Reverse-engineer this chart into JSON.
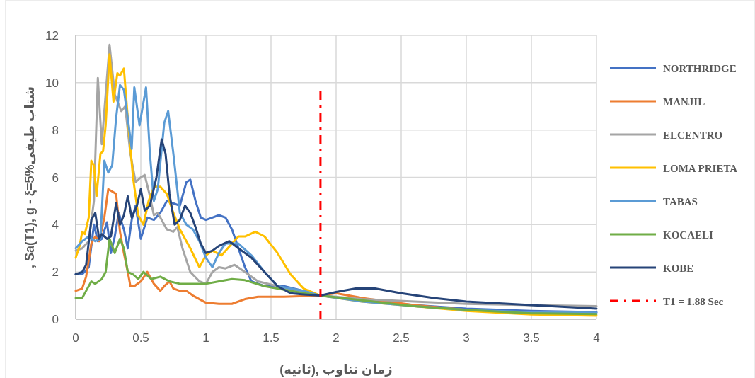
{
  "chart_data": {
    "type": "line",
    "xlabel": "زمان تناوب ,(ثانیه)",
    "ylabel": ", Sa(T1), g - ξ=5%شتاب طیفی",
    "xlim": [
      0,
      4
    ],
    "ylim": [
      0,
      12
    ],
    "xticks": [
      0,
      0.5,
      1,
      1.5,
      2,
      2.5,
      3,
      3.5,
      4
    ],
    "yticks": [
      0,
      2,
      4,
      6,
      8,
      10,
      12
    ],
    "grid": true,
    "legend": "right",
    "series": [
      {
        "name": "NORTHRIDGE",
        "color": "#4472c4",
        "x": [
          0,
          0.05,
          0.1,
          0.14,
          0.17,
          0.2,
          0.24,
          0.27,
          0.3,
          0.33,
          0.37,
          0.4,
          0.43,
          0.46,
          0.5,
          0.55,
          0.6,
          0.65,
          0.7,
          0.75,
          0.8,
          0.85,
          0.88,
          0.92,
          0.96,
          1.0,
          1.05,
          1.1,
          1.15,
          1.2,
          1.25,
          1.3,
          1.35,
          1.45,
          1.6,
          1.75,
          1.88,
          2.2,
          2.6,
          3.0,
          3.5,
          4.0
        ],
        "values": [
          1.9,
          1.9,
          2.2,
          4.0,
          3.3,
          3.4,
          4.1,
          2.8,
          3.5,
          4.5,
          3.8,
          3.0,
          4.2,
          4.8,
          3.4,
          4.3,
          4.2,
          4.5,
          5.0,
          4.9,
          4.8,
          5.8,
          5.9,
          5.0,
          4.3,
          4.2,
          4.3,
          4.4,
          4.3,
          3.8,
          3.0,
          2.2,
          1.6,
          1.4,
          1.4,
          1.2,
          1.0,
          0.8,
          0.6,
          0.45,
          0.35,
          0.3
        ]
      },
      {
        "name": "MANJIL",
        "color": "#ed7d31",
        "x": [
          0,
          0.05,
          0.08,
          0.12,
          0.15,
          0.18,
          0.22,
          0.25,
          0.28,
          0.31,
          0.34,
          0.37,
          0.4,
          0.42,
          0.45,
          0.5,
          0.55,
          0.6,
          0.65,
          0.68,
          0.72,
          0.75,
          0.8,
          0.85,
          0.9,
          0.95,
          1.0,
          1.1,
          1.2,
          1.3,
          1.4,
          1.6,
          1.88,
          2.0,
          2.2,
          2.6,
          3.0
        ],
        "values": [
          1.2,
          1.3,
          1.8,
          3.2,
          3.5,
          3.3,
          4.3,
          5.5,
          5.4,
          5.3,
          3.7,
          2.8,
          2.0,
          1.4,
          1.4,
          1.6,
          2.0,
          1.5,
          1.2,
          1.4,
          1.6,
          1.3,
          1.2,
          1.2,
          1.0,
          0.85,
          0.7,
          0.65,
          0.65,
          0.85,
          0.95,
          0.95,
          1.0,
          1.1,
          0.9,
          0.6,
          0.4
        ]
      },
      {
        "name": "ELCENTRO",
        "color": "#a5a5a5",
        "x": [
          0,
          0.05,
          0.1,
          0.14,
          0.17,
          0.2,
          0.23,
          0.26,
          0.3,
          0.35,
          0.38,
          0.42,
          0.46,
          0.5,
          0.53,
          0.57,
          0.6,
          0.63,
          0.7,
          0.75,
          0.78,
          0.82,
          0.88,
          0.95,
          1.0,
          1.05,
          1.1,
          1.15,
          1.22,
          1.3,
          1.4,
          1.55,
          1.7,
          1.88,
          2.0,
          2.2,
          2.6,
          3.0,
          3.5,
          4.0
        ],
        "values": [
          2.9,
          3.0,
          3.3,
          5.0,
          10.2,
          7.4,
          9.5,
          11.6,
          9.5,
          8.8,
          9.0,
          7.0,
          5.8,
          6.0,
          6.1,
          5.2,
          4.4,
          4.5,
          3.8,
          3.7,
          3.9,
          3.0,
          2.0,
          1.6,
          1.5,
          2.0,
          2.2,
          2.15,
          2.3,
          2.0,
          1.6,
          1.4,
          1.2,
          1.0,
          0.95,
          0.85,
          0.75,
          0.65,
          0.6,
          0.55
        ]
      },
      {
        "name": "LOMA PRIETA",
        "color": "#ffc000",
        "x": [
          0,
          0.03,
          0.05,
          0.07,
          0.1,
          0.12,
          0.14,
          0.16,
          0.19,
          0.21,
          0.23,
          0.26,
          0.29,
          0.32,
          0.34,
          0.37,
          0.4,
          0.44,
          0.48,
          0.52,
          0.56,
          0.6,
          0.65,
          0.7,
          0.75,
          0.8,
          0.88,
          0.95,
          1.0,
          1.05,
          1.12,
          1.2,
          1.25,
          1.3,
          1.38,
          1.45,
          1.55,
          1.65,
          1.75,
          1.88,
          2.2,
          2.6,
          3.0,
          3.5,
          4.0
        ],
        "values": [
          2.6,
          3.1,
          3.7,
          3.6,
          4.3,
          6.7,
          6.5,
          5.2,
          7.0,
          7.1,
          8.2,
          11.2,
          9.2,
          10.4,
          10.3,
          10.6,
          8.5,
          6.0,
          4.4,
          4.0,
          5.0,
          5.6,
          5.6,
          5.3,
          4.5,
          3.8,
          3.0,
          2.2,
          2.7,
          2.9,
          2.7,
          3.2,
          3.5,
          3.5,
          3.7,
          3.5,
          2.8,
          1.9,
          1.3,
          1.0,
          0.75,
          0.55,
          0.35,
          0.2,
          0.15
        ]
      },
      {
        "name": "TABAS",
        "color": "#5b9bd5",
        "x": [
          0,
          0.05,
          0.1,
          0.15,
          0.19,
          0.22,
          0.25,
          0.28,
          0.31,
          0.34,
          0.37,
          0.4,
          0.43,
          0.45,
          0.49,
          0.54,
          0.57,
          0.6,
          0.63,
          0.68,
          0.71,
          0.75,
          0.8,
          0.85,
          0.9,
          0.95,
          1.0,
          1.05,
          1.1,
          1.15,
          1.25,
          1.35,
          1.45,
          1.55,
          1.65,
          1.75,
          1.88,
          2.2,
          2.6,
          3.0,
          3.5,
          4.0
        ],
        "values": [
          3.0,
          3.3,
          3.5,
          3.3,
          3.4,
          6.7,
          6.2,
          6.5,
          8.5,
          9.9,
          9.7,
          8.5,
          7.2,
          9.8,
          8.2,
          9.8,
          7.0,
          5.0,
          5.5,
          8.3,
          8.8,
          7.0,
          4.5,
          4.0,
          3.8,
          3.3,
          2.6,
          2.2,
          2.8,
          3.2,
          3.2,
          2.7,
          2.0,
          1.4,
          1.3,
          1.2,
          1.0,
          0.75,
          0.55,
          0.4,
          0.3,
          0.28
        ]
      },
      {
        "name": "KOCAELI",
        "color": "#70ad47",
        "x": [
          0,
          0.05,
          0.08,
          0.12,
          0.15,
          0.2,
          0.23,
          0.26,
          0.3,
          0.34,
          0.37,
          0.4,
          0.44,
          0.48,
          0.52,
          0.58,
          0.65,
          0.72,
          0.8,
          0.9,
          1.0,
          1.1,
          1.2,
          1.3,
          1.45,
          1.6,
          1.75,
          1.88,
          2.2,
          2.6,
          3.0,
          3.5,
          4.0
        ],
        "values": [
          0.9,
          0.9,
          1.2,
          1.6,
          1.5,
          1.7,
          2.0,
          3.4,
          2.8,
          3.4,
          3.0,
          2.0,
          1.9,
          1.7,
          2.0,
          1.7,
          1.8,
          1.6,
          1.5,
          1.5,
          1.5,
          1.6,
          1.7,
          1.65,
          1.4,
          1.25,
          1.1,
          1.0,
          0.8,
          0.55,
          0.4,
          0.25,
          0.22
        ]
      },
      {
        "name": "KOBE",
        "color": "#264478",
        "x": [
          0,
          0.05,
          0.08,
          0.12,
          0.15,
          0.18,
          0.2,
          0.24,
          0.27,
          0.31,
          0.34,
          0.37,
          0.4,
          0.43,
          0.47,
          0.5,
          0.53,
          0.57,
          0.62,
          0.66,
          0.69,
          0.72,
          0.76,
          0.8,
          0.84,
          0.88,
          0.92,
          0.96,
          1.0,
          1.05,
          1.1,
          1.18,
          1.25,
          1.35,
          1.45,
          1.55,
          1.65,
          1.75,
          1.88,
          2.0,
          2.15,
          2.3,
          2.5,
          2.75,
          3.0,
          3.5,
          4.0
        ],
        "values": [
          1.9,
          2.0,
          2.3,
          4.2,
          4.5,
          3.4,
          3.6,
          3.4,
          3.5,
          4.9,
          4.0,
          4.4,
          5.2,
          4.3,
          4.8,
          5.5,
          4.6,
          4.8,
          6.0,
          7.6,
          7.0,
          5.3,
          4.0,
          4.2,
          4.8,
          4.5,
          3.9,
          3.2,
          2.8,
          2.9,
          3.1,
          3.3,
          3.0,
          2.6,
          2.0,
          1.4,
          1.1,
          1.05,
          1.0,
          1.15,
          1.3,
          1.3,
          1.1,
          0.9,
          0.75,
          0.6,
          0.45
        ]
      },
      {
        "name": "T1 = 1.88 Sec",
        "color": "#ff0000",
        "line_style": "dashed",
        "x": [
          1.88,
          1.88
        ],
        "values": [
          0,
          9.7
        ]
      }
    ]
  }
}
